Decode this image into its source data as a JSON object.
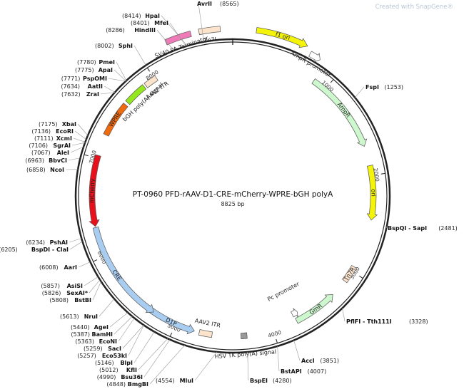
{
  "credit": "Created with SnapGene®",
  "title": "PT-0960   PFD-rAAV-D1-CRE-mCherry-WPRE-bGH polyA",
  "size_label": "8825 bp",
  "total_bp": 8825,
  "ticks": [
    {
      "bp": 1000,
      "label": "1000"
    },
    {
      "bp": 2000,
      "label": "2000"
    },
    {
      "bp": 3000,
      "label": "3000"
    },
    {
      "bp": 4000,
      "label": "4000"
    },
    {
      "bp": 5000,
      "label": "5000"
    },
    {
      "bp": 6000,
      "label": "6000"
    },
    {
      "bp": 7000,
      "label": "7000"
    },
    {
      "bp": 8000,
      "label": "8000"
    }
  ],
  "features": [
    {
      "name": "f1 ori",
      "type": "arrow",
      "start": 200,
      "end": 650,
      "color": "#f4f40b",
      "label_inside": true
    },
    {
      "name": "AmpR promoter",
      "type": "arrow",
      "start": 700,
      "end": 800,
      "color": "#ffffff",
      "label_inside": false
    },
    {
      "name": "AmpR",
      "type": "arrow",
      "start": 860,
      "end": 1700,
      "color": "#cdf7cd",
      "label_inside": true
    },
    {
      "name": "ori",
      "type": "arrow",
      "start": 1900,
      "end": 2450,
      "color": "#f4f40b",
      "label_inside": true
    },
    {
      "name": "Tn7R",
      "type": "box",
      "start": 2950,
      "end": 3120,
      "color": "#fbe3cc",
      "label_inside": true
    },
    {
      "name": "GmR",
      "type": "arrow",
      "start": 3300,
      "end": 3750,
      "color": "#cdf7cd",
      "label_inside": true
    },
    {
      "name": "Pc promoter",
      "type": "arrow",
      "start": 3700,
      "end": 3760,
      "color": "#ffffff",
      "label_inside": false
    },
    {
      "name": "HSV TK poly(A) signal",
      "type": "box",
      "start": 4270,
      "end": 4330,
      "color": "#999999",
      "label_inside": false
    },
    {
      "name": "AAV2 ITR",
      "type": "box",
      "start": 4620,
      "end": 4750,
      "color": "#fbe3cc",
      "label_inside": false
    },
    {
      "name": "D1P",
      "type": "arrow",
      "start": 4800,
      "end": 5300,
      "color": "#a9cdf0",
      "label_inside": true
    },
    {
      "name": "CRE",
      "type": "arrow",
      "start": 5250,
      "end": 6300,
      "color": "#a9cdf0",
      "label_inside": true
    },
    {
      "name": "mCherry",
      "type": "arrow",
      "start": 6310,
      "end": 7030,
      "color": "#e8101a",
      "label_inside": true
    },
    {
      "name": "WPRE",
      "type": "box",
      "start": 7250,
      "end": 7610,
      "color": "#f06a10",
      "label_inside": true
    },
    {
      "name": "bGH poly(A) signal",
      "type": "box",
      "start": 7640,
      "end": 7870,
      "color": "#95e81e",
      "label_inside": false
    },
    {
      "name": "AAV2 ITR",
      "type": "box",
      "start": 7890,
      "end": 8020,
      "color": "#fbe3cc",
      "label_inside": false
    },
    {
      "name": "SV40 PA Terminator",
      "type": "box",
      "start": 8250,
      "end": 8470,
      "color": "#f07ab8",
      "label_inside": false
    },
    {
      "name": "Tn7L",
      "type": "box",
      "start": 8540,
      "end": 8720,
      "color": "#fbe3cc",
      "label_inside": false
    }
  ],
  "sites": [
    {
      "name": "AvrII",
      "pos": "(8565)"
    },
    {
      "name": "HpaI",
      "pos": "(8414)"
    },
    {
      "name": "MfeI",
      "pos": "(8401)"
    },
    {
      "name": "HindIII",
      "pos": "(8286)"
    },
    {
      "name": "SphI",
      "pos": "(8002)"
    },
    {
      "name": "PmeI",
      "pos": "(7780)"
    },
    {
      "name": "ApaI",
      "pos": "(7775)"
    },
    {
      "name": "PspOMI",
      "pos": "(7771)"
    },
    {
      "name": "AatII",
      "pos": "(7634)"
    },
    {
      "name": "ZraI",
      "pos": "(7632)"
    },
    {
      "name": "XbaI",
      "pos": "(7175)"
    },
    {
      "name": "EcoRI",
      "pos": "(7136)"
    },
    {
      "name": "XcmI",
      "pos": "(7111)"
    },
    {
      "name": "SgrAI",
      "pos": "(7106)"
    },
    {
      "name": "AleI",
      "pos": "(7067)"
    },
    {
      "name": "BbvCI",
      "pos": "(6963)"
    },
    {
      "name": "NcoI",
      "pos": "(6858)"
    },
    {
      "name": "PshAI",
      "pos": "(6234)"
    },
    {
      "name": "BspDI - ClaI",
      "pos": "(6205)"
    },
    {
      "name": "AarI",
      "pos": "(6008)"
    },
    {
      "name": "AsiSI",
      "pos": "(5857)"
    },
    {
      "name": "SexAI*",
      "pos": "(5826)"
    },
    {
      "name": "BstBI",
      "pos": "(5808)"
    },
    {
      "name": "NruI",
      "pos": "(5613)"
    },
    {
      "name": "AgeI",
      "pos": "(5440)"
    },
    {
      "name": "BamHI",
      "pos": "(5387)"
    },
    {
      "name": "EcoNI",
      "pos": "(5363)"
    },
    {
      "name": "SacI",
      "pos": "(5259)"
    },
    {
      "name": "Eco53kI",
      "pos": "(5257)"
    },
    {
      "name": "BlpI",
      "pos": "(5146)"
    },
    {
      "name": "KflI",
      "pos": "(5012)"
    },
    {
      "name": "Bsu36I",
      "pos": "(4990)"
    },
    {
      "name": "BmgBI",
      "pos": "(4848)"
    },
    {
      "name": "MluI",
      "pos": "(4554)"
    },
    {
      "name": "BspEI",
      "pos": "(4280)"
    },
    {
      "name": "BstAPI",
      "pos": "(4007)"
    },
    {
      "name": "AccI",
      "pos": "(3851)"
    },
    {
      "name": "PflFI - Tth111I",
      "pos": "(3328)"
    },
    {
      "name": "BspQI - SapI",
      "pos": "(2481)"
    },
    {
      "name": "FspI",
      "pos": "(1253)"
    }
  ]
}
